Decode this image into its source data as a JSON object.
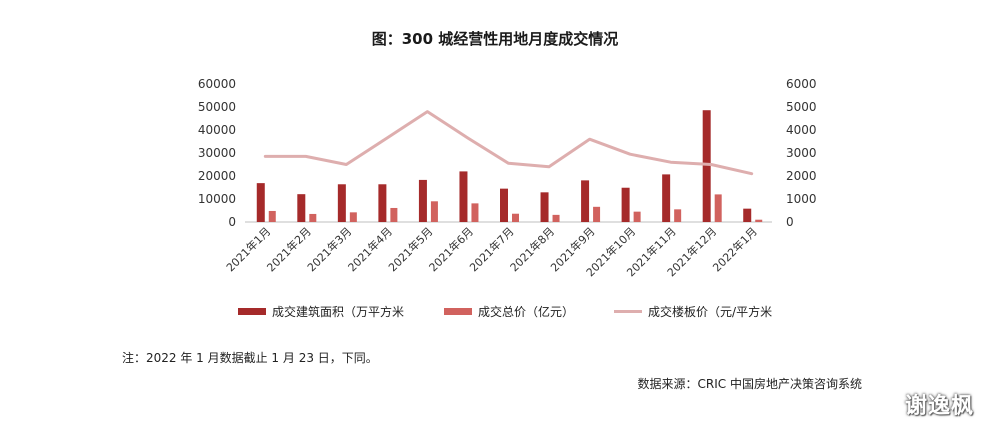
{
  "chart_data": {
    "type": "bar",
    "title": "图：300 城经营性用地月度成交情况",
    "categories": [
      "2021年1月",
      "2021年2月",
      "2021年3月",
      "2021年4月",
      "2021年5月",
      "2021年6月",
      "2021年7月",
      "2021年8月",
      "2021年9月",
      "2021年10月",
      "2021年11月",
      "2021年12月",
      "2022年1月"
    ],
    "left_axis": {
      "ylim": [
        0,
        60000
      ],
      "ticks": [
        "0",
        "10000",
        "20000",
        "30000",
        "40000",
        "50000",
        "60000"
      ]
    },
    "right_axis": {
      "ylim": [
        0,
        6000
      ],
      "ticks": [
        "0",
        "1000",
        "2000",
        "3000",
        "4000",
        "5000",
        "6000"
      ]
    },
    "series": [
      {
        "name": "成交建筑面积（万平方米",
        "type": "bar",
        "axis": "left",
        "color": "#a52a2a",
        "values": [
          16900,
          12100,
          16400,
          16400,
          18300,
          22000,
          14500,
          12900,
          18100,
          14900,
          20700,
          48600,
          5800
        ]
      },
      {
        "name": "成交总价（亿元）",
        "type": "bar",
        "axis": "left",
        "color": "#d1625e",
        "values": [
          4800,
          3500,
          4200,
          6100,
          9000,
          8100,
          3600,
          3100,
          6600,
          4500,
          5500,
          12000,
          1000
        ]
      },
      {
        "name": "成交楼板价（元/平方米",
        "type": "line",
        "axis": "right",
        "color": "#deaeae",
        "values": [
          2850,
          2850,
          2500,
          3650,
          4800,
          3650,
          2550,
          2400,
          3600,
          2950,
          2600,
          2500,
          2100
        ]
      }
    ],
    "grid": false,
    "legend_position": "bottom"
  },
  "footnote": "注：2022 年 1 月数据截止 1 月 23 日，下同。",
  "source": "数据来源：CRIC 中国房地产决策咨询系统",
  "watermark": "谢逸枫"
}
